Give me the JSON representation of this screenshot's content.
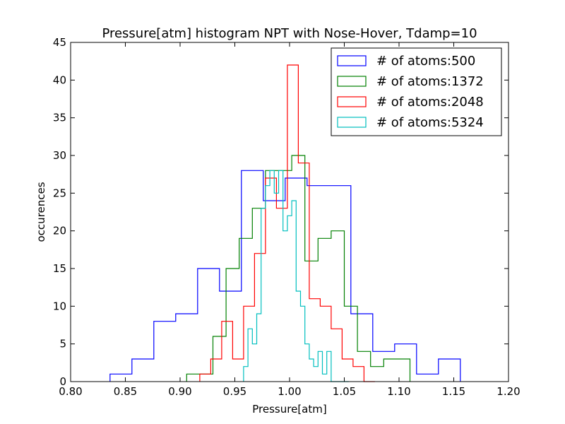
{
  "chart_data": {
    "type": "histogram-step",
    "title": "Pressure[atm] histogram NPT with Nose-Hover, Tdamp=10",
    "xlabel": "Pressure[atm]",
    "ylabel": "occurences",
    "xlim": [
      0.8,
      1.2
    ],
    "ylim": [
      0,
      45
    ],
    "xticks": [
      "0.80",
      "0.85",
      "0.90",
      "0.95",
      "1.00",
      "1.05",
      "1.10",
      "1.15",
      "1.20"
    ],
    "xtick_values": [
      0.8,
      0.85,
      0.9,
      0.95,
      1.0,
      1.05,
      1.1,
      1.15,
      1.2
    ],
    "yticks": [
      "0",
      "5",
      "10",
      "15",
      "20",
      "25",
      "30",
      "35",
      "40",
      "45"
    ],
    "ytick_values": [
      0,
      5,
      10,
      15,
      20,
      25,
      30,
      35,
      40,
      45
    ],
    "grid": false,
    "legend_position": "top-right",
    "series": [
      {
        "name": "# of atoms:500",
        "color": "#0000ff",
        "edges": [
          0.836,
          0.856,
          0.876,
          0.896,
          0.916,
          0.936,
          0.956,
          0.976,
          0.996,
          1.016,
          1.036,
          1.056,
          1.076,
          1.096,
          1.116,
          1.136,
          1.156
        ],
        "counts": [
          1,
          3,
          8,
          9,
          15,
          12,
          28,
          24,
          27,
          26,
          26,
          9,
          4,
          5,
          1,
          3
        ]
      },
      {
        "name": "# of atoms:1372",
        "color": "#008000",
        "edges": [
          0.906,
          0.918,
          0.93,
          0.942,
          0.954,
          0.966,
          0.978,
          0.99,
          1.002,
          1.014,
          1.026,
          1.038,
          1.05,
          1.062,
          1.074,
          1.086,
          1.098,
          1.11
        ],
        "counts": [
          1,
          1,
          6,
          15,
          19,
          23,
          28,
          28,
          30,
          16,
          19,
          20,
          10,
          4,
          2,
          3,
          3
        ]
      },
      {
        "name": "# of atoms:2048",
        "color": "#ff0000",
        "edges": [
          0.918,
          0.928,
          0.938,
          0.948,
          0.958,
          0.968,
          0.978,
          0.988,
          0.998,
          1.008,
          1.018,
          1.028,
          1.038,
          1.048,
          1.058,
          1.068,
          1.078
        ],
        "counts": [
          1,
          3,
          8,
          3,
          10,
          17,
          27,
          23,
          42,
          29,
          11,
          10,
          7,
          3,
          2,
          0
        ]
      },
      {
        "name": "# of atoms:5324",
        "color": "#00bfbf",
        "edges": [
          0.958,
          0.962,
          0.966,
          0.97,
          0.974,
          0.978,
          0.982,
          0.986,
          0.99,
          0.994,
          0.998,
          1.002,
          1.006,
          1.01,
          1.014,
          1.018,
          1.022,
          1.026,
          1.03,
          1.034,
          1.038,
          1.042,
          1.046,
          1.05,
          1.054
        ],
        "counts": [
          2,
          7,
          5,
          9,
          23,
          26,
          28,
          25,
          28,
          20,
          22,
          24,
          12,
          10,
          5,
          3,
          2,
          4,
          1,
          4,
          0,
          0,
          0,
          0
        ]
      }
    ]
  }
}
